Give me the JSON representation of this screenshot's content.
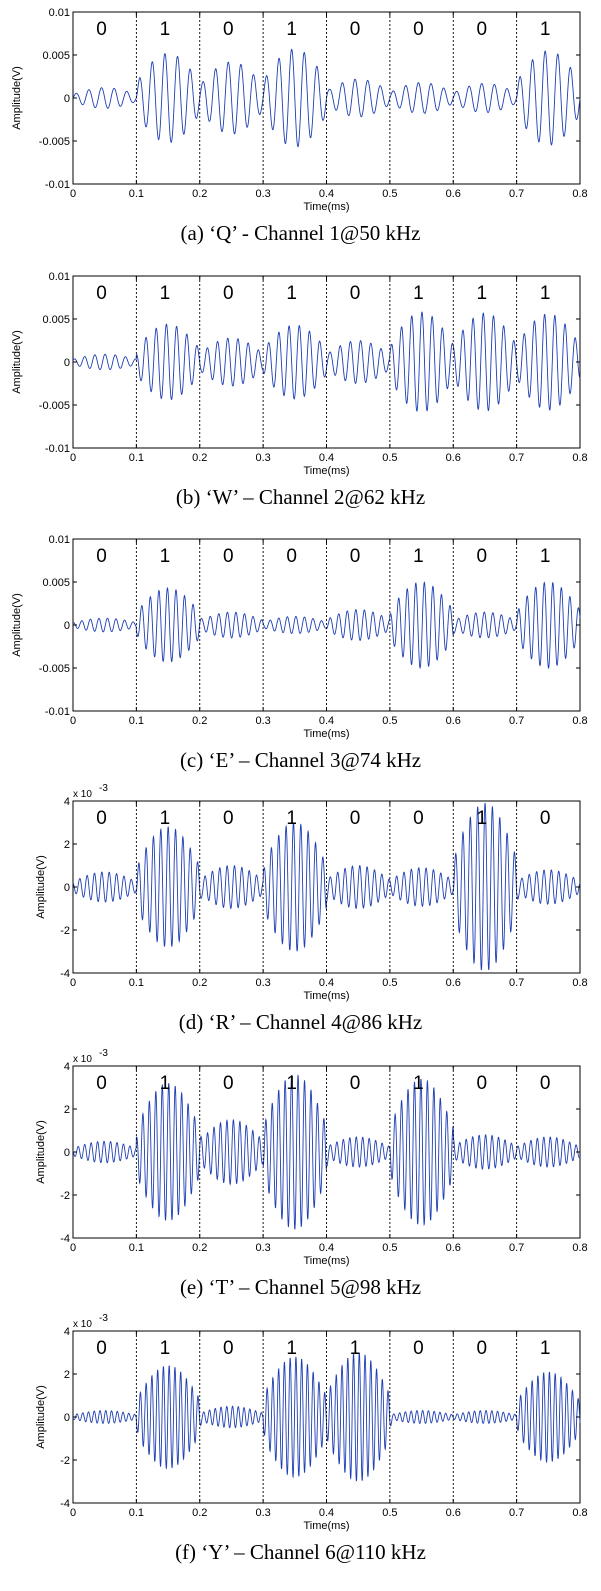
{
  "chart_data": [
    {
      "type": "line",
      "caption": "(a) ‘Q’ - Channel 1@50 kHz",
      "xlabel": "Time(ms)",
      "ylabel": "Amplitude(V)",
      "xlim": [
        0,
        0.8
      ],
      "ylim": [
        -0.01,
        0.01
      ],
      "x_ticks": [
        "0",
        "0.1",
        "0.2",
        "0.3",
        "0.4",
        "0.5",
        "0.6",
        "0.7",
        "0.8"
      ],
      "y_ticks": [
        "0.01",
        "0.005",
        "0",
        "-0.005",
        "-0.01"
      ],
      "y_tick_values": [
        0.01,
        0.005,
        0,
        -0.005,
        -0.01
      ],
      "y_exponent": "",
      "carrier_khz": 50,
      "bit_boundaries_ms": [
        0.1,
        0.2,
        0.3,
        0.4,
        0.5,
        0.6,
        0.7
      ],
      "bits": [
        "0",
        "1",
        "0",
        "1",
        "0",
        "0",
        "0",
        "1"
      ],
      "segment_envelope_peak": [
        0.0012,
        0.0052,
        0.0042,
        0.0057,
        0.0022,
        0.0018,
        0.0017,
        0.0055
      ],
      "series_color": "#1f3fb4"
    },
    {
      "type": "line",
      "caption": "(b) ‘W’ – Channel 2@62 kHz",
      "xlabel": "Time(ms)",
      "ylabel": "Amplitude(V)",
      "xlim": [
        0,
        0.8
      ],
      "ylim": [
        -0.01,
        0.01
      ],
      "x_ticks": [
        "0",
        "0.1",
        "0.2",
        "0.3",
        "0.4",
        "0.5",
        "0.6",
        "0.7",
        "0.8"
      ],
      "y_ticks": [
        "0.01",
        "0.005",
        "0",
        "-0.005",
        "-0.01"
      ],
      "y_tick_values": [
        0.01,
        0.005,
        0,
        -0.005,
        -0.01
      ],
      "y_exponent": "",
      "carrier_khz": 62,
      "bit_boundaries_ms": [
        0.1,
        0.2,
        0.3,
        0.4,
        0.5,
        0.6,
        0.7
      ],
      "bits": [
        "0",
        "1",
        "0",
        "1",
        "0",
        "1",
        "1",
        "1"
      ],
      "segment_envelope_peak": [
        0.0009,
        0.0044,
        0.0028,
        0.0043,
        0.0025,
        0.0058,
        0.0057,
        0.0056
      ],
      "series_color": "#1f3fb4"
    },
    {
      "type": "line",
      "caption": "(c) ‘E’ – Channel 3@74 kHz",
      "xlabel": "Time(ms)",
      "ylabel": "Amplitude(V)",
      "xlim": [
        0,
        0.8
      ],
      "ylim": [
        -0.01,
        0.01
      ],
      "x_ticks": [
        "0",
        "0.1",
        "0.2",
        "0.3",
        "0.4",
        "0.5",
        "0.6",
        "0.7",
        "0.8"
      ],
      "y_ticks": [
        "0.01",
        "0.005",
        "0",
        "-0.005",
        "-0.01"
      ],
      "y_tick_values": [
        0.01,
        0.005,
        0,
        -0.005,
        -0.01
      ],
      "y_exponent": "",
      "carrier_khz": 74,
      "bit_boundaries_ms": [
        0.1,
        0.2,
        0.3,
        0.4,
        0.5,
        0.6,
        0.7
      ],
      "bits": [
        "0",
        "1",
        "0",
        "0",
        "0",
        "1",
        "0",
        "1"
      ],
      "segment_envelope_peak": [
        0.0008,
        0.0043,
        0.0015,
        0.001,
        0.0018,
        0.005,
        0.0015,
        0.005
      ],
      "series_color": "#1f3fb4"
    },
    {
      "type": "line",
      "caption": "(d) ‘R’ – Channel 4@86 kHz",
      "xlabel": "Time(ms)",
      "ylabel": "Amplitude(V)",
      "xlim": [
        0,
        0.8
      ],
      "ylim": [
        -4,
        4
      ],
      "x_ticks": [
        "0",
        "0.1",
        "0.2",
        "0.3",
        "0.4",
        "0.5",
        "0.6",
        "0.7",
        "0.8"
      ],
      "y_ticks": [
        "4",
        "2",
        "0",
        "-2",
        "-4"
      ],
      "y_tick_values": [
        4,
        2,
        0,
        -2,
        -4
      ],
      "y_exponent": "x 10",
      "y_exponent_power": "-3",
      "carrier_khz": 86,
      "bit_boundaries_ms": [
        0.1,
        0.2,
        0.3,
        0.4,
        0.5,
        0.6,
        0.7
      ],
      "bits": [
        "0",
        "1",
        "0",
        "1",
        "0",
        "0",
        "1",
        "0"
      ],
      "segment_envelope_peak": [
        0.7,
        2.8,
        1.0,
        3.0,
        1.0,
        0.9,
        3.9,
        0.8
      ],
      "series_color": "#1f3fb4"
    },
    {
      "type": "line",
      "caption": "(e) ‘T’ – Channel 5@98 kHz",
      "xlabel": "Time(ms)",
      "ylabel": "Amplitude(V)",
      "xlim": [
        0,
        0.8
      ],
      "ylim": [
        -4,
        4
      ],
      "x_ticks": [
        "0",
        "0.1",
        "0.2",
        "0.3",
        "0.4",
        "0.5",
        "0.6",
        "0.7",
        "0.8"
      ],
      "y_ticks": [
        "4",
        "2",
        "0",
        "-2",
        "-4"
      ],
      "y_tick_values": [
        4,
        2,
        0,
        -2,
        -4
      ],
      "y_exponent": "x 10",
      "y_exponent_power": "-3",
      "carrier_khz": 98,
      "bit_boundaries_ms": [
        0.1,
        0.2,
        0.3,
        0.4,
        0.5,
        0.6,
        0.7
      ],
      "bits": [
        "0",
        "1",
        "0",
        "1",
        "0",
        "1",
        "0",
        "0"
      ],
      "segment_envelope_peak": [
        0.5,
        3.2,
        1.5,
        3.6,
        0.7,
        3.4,
        0.8,
        0.7
      ],
      "series_color": "#1f3fb4"
    },
    {
      "type": "line",
      "caption": "(f) ‘Y’ – Channel 6@110 kHz",
      "xlabel": "Time(ms)",
      "ylabel": "Amplitude(V)",
      "xlim": [
        0,
        0.8
      ],
      "ylim": [
        -4,
        4
      ],
      "x_ticks": [
        "0",
        "0.1",
        "0.2",
        "0.3",
        "0.4",
        "0.5",
        "0.6",
        "0.7",
        "0.8"
      ],
      "y_ticks": [
        "4",
        "2",
        "0",
        "-2",
        "-4"
      ],
      "y_tick_values": [
        4,
        2,
        0,
        -2,
        -4
      ],
      "y_exponent": "x 10",
      "y_exponent_power": "-3",
      "carrier_khz": 110,
      "bit_boundaries_ms": [
        0.1,
        0.2,
        0.3,
        0.4,
        0.5,
        0.6,
        0.7
      ],
      "bits": [
        "0",
        "1",
        "0",
        "1",
        "1",
        "0",
        "0",
        "1"
      ],
      "segment_envelope_peak": [
        0.3,
        2.4,
        0.5,
        2.8,
        3.0,
        0.3,
        0.3,
        2.1
      ],
      "series_color": "#1f3fb4"
    }
  ]
}
